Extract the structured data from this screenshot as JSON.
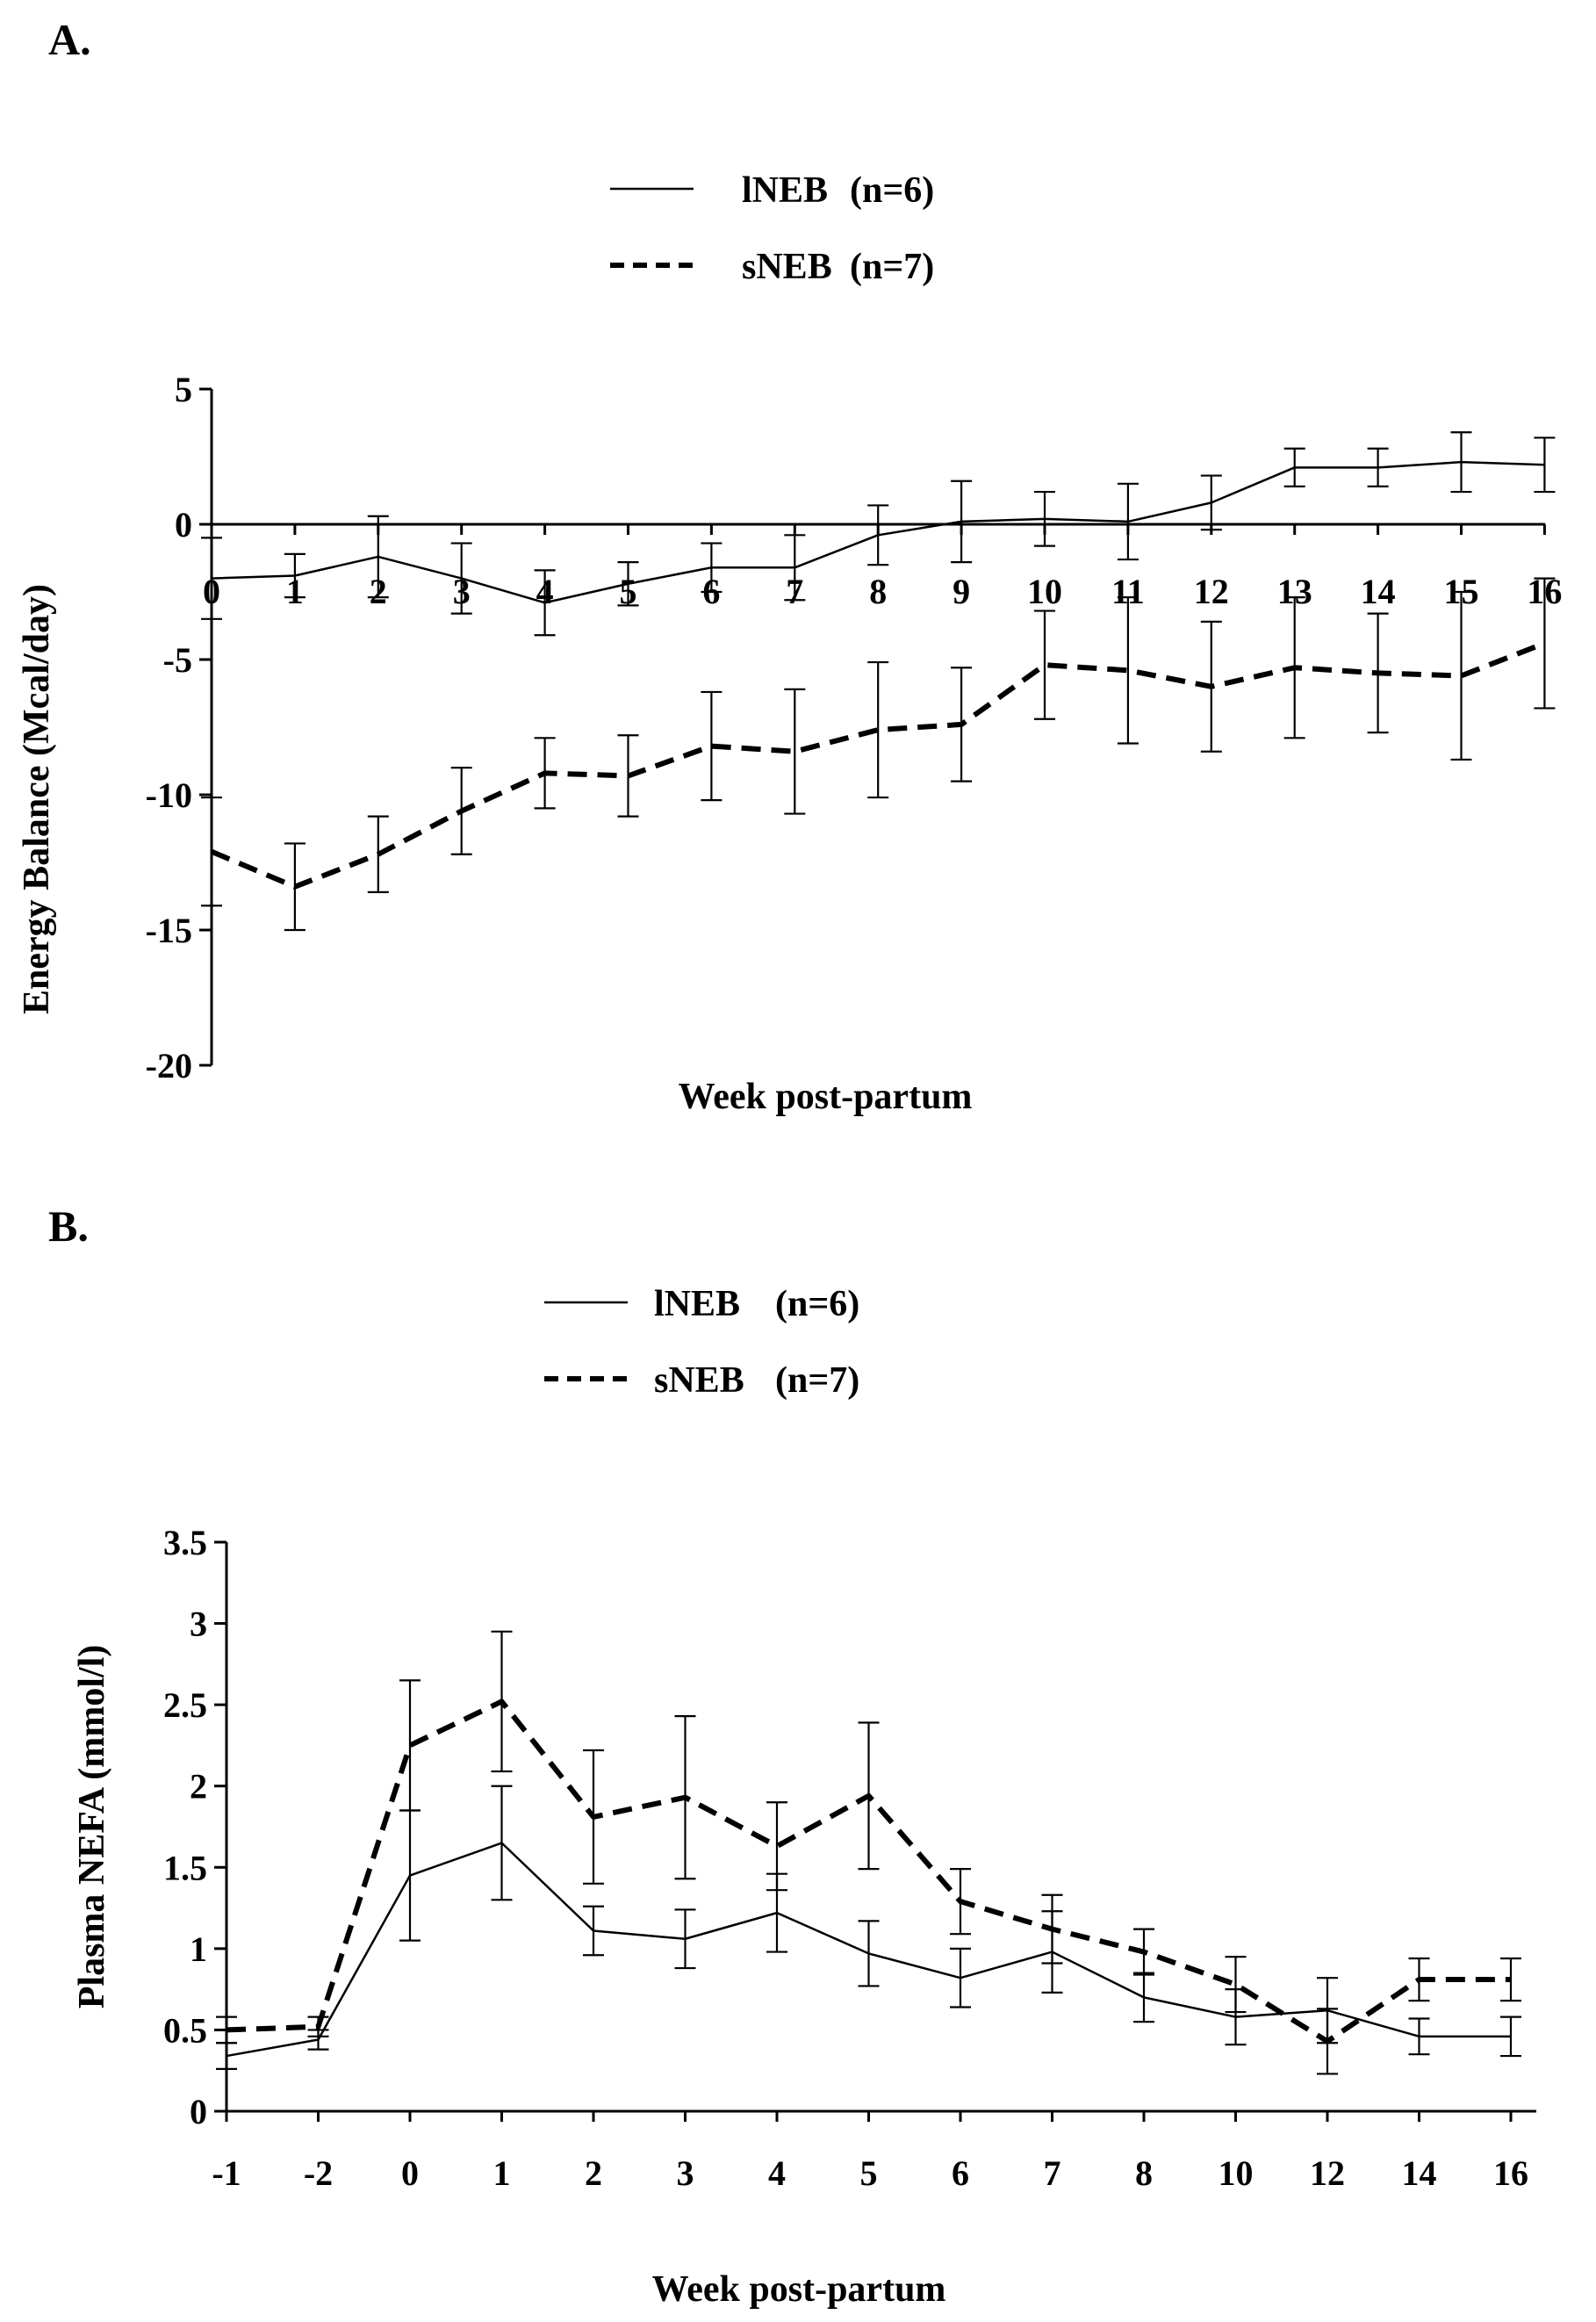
{
  "figure": {
    "panel_a_label": "A.",
    "panel_b_label": "B."
  },
  "chart_data": [
    {
      "id": "A",
      "type": "line",
      "xlabel": "Week post-partum",
      "ylabel": "Energy Balance (Mcal/day)",
      "ylim": [
        -20,
        5
      ],
      "yticks": [
        "5",
        "0",
        "-5",
        "-10",
        "-15",
        "-20"
      ],
      "ytick_values": [
        5,
        0,
        -5,
        -10,
        -15,
        -20
      ],
      "categories": [
        "0",
        "1",
        "2",
        "3",
        "4",
        "5",
        "6",
        "7",
        "8",
        "9",
        "10",
        "11",
        "12",
        "13",
        "14",
        "15",
        "16"
      ],
      "x_axis_crosses_at": 0,
      "grid": false,
      "legend_position": "top-center",
      "series": [
        {
          "name": "lNEB",
          "legend_label": "lNEB",
          "n_label": "(n=6)",
          "style": "solid",
          "values": [
            -2.0,
            -1.9,
            -1.2,
            -2.0,
            -2.9,
            -2.2,
            -1.6,
            -1.6,
            -0.4,
            0.1,
            0.2,
            0.1,
            0.8,
            2.1,
            2.1,
            2.3,
            2.2
          ],
          "errors": [
            1.5,
            0.8,
            1.5,
            1.3,
            1.2,
            0.8,
            0.9,
            1.2,
            1.1,
            1.5,
            1.0,
            1.4,
            1.0,
            0.7,
            0.7,
            1.1,
            1.0
          ]
        },
        {
          "name": "sNEB",
          "legend_label": "sNEB",
          "n_label": "(n=7)",
          "style": "dashed",
          "values": [
            -12.1,
            -13.4,
            -12.2,
            -10.6,
            -9.2,
            -9.3,
            -8.2,
            -8.4,
            -7.6,
            -7.4,
            -5.2,
            -5.4,
            -6.0,
            -5.3,
            -5.5,
            -5.6,
            -4.4
          ],
          "errors": [
            2.0,
            1.6,
            1.4,
            1.6,
            1.3,
            1.5,
            2.0,
            2.3,
            2.5,
            2.1,
            2.0,
            2.7,
            2.4,
            2.6,
            2.2,
            3.1,
            2.4
          ]
        }
      ]
    },
    {
      "id": "B",
      "type": "line",
      "xlabel": "Week post-partum",
      "ylabel": "Plasma NEFA  (mmol/l)",
      "ylim": [
        0,
        3.5
      ],
      "yticks": [
        "3.5",
        "3",
        "2.5",
        "2",
        "1.5",
        "1",
        "0.5",
        "0"
      ],
      "ytick_values": [
        3.5,
        3,
        2.5,
        2,
        1.5,
        1,
        0.5,
        0
      ],
      "categories": [
        "-1",
        "-2",
        "0",
        "1",
        "2",
        "3",
        "4",
        "5",
        "6",
        "7",
        "8",
        "10",
        "12",
        "14",
        "16"
      ],
      "grid": false,
      "legend_position": "top-center",
      "series": [
        {
          "name": "lNEB",
          "legend_label": "lNEB",
          "n_label": "(n=6)",
          "style": "solid",
          "values": [
            0.34,
            0.44,
            1.45,
            1.65,
            1.11,
            1.06,
            1.22,
            0.97,
            0.82,
            0.98,
            0.7,
            0.58,
            0.62,
            0.46,
            0.46
          ],
          "errors": [
            0.08,
            0.06,
            0.4,
            0.35,
            0.15,
            0.18,
            0.24,
            0.2,
            0.18,
            0.25,
            0.15,
            0.17,
            0.2,
            0.11,
            0.12
          ]
        },
        {
          "name": "sNEB",
          "legend_label": "sNEB",
          "n_label": "(n=7)",
          "style": "dashed",
          "values": [
            0.5,
            0.52,
            2.25,
            2.52,
            1.81,
            1.93,
            1.63,
            1.94,
            1.29,
            1.12,
            0.98,
            0.78,
            0.43,
            0.81,
            0.81
          ],
          "errors": [
            0.08,
            0.06,
            0.4,
            0.43,
            0.41,
            0.5,
            0.27,
            0.45,
            0.2,
            0.21,
            0.14,
            0.17,
            0.2,
            0.13,
            0.13
          ]
        }
      ]
    }
  ]
}
